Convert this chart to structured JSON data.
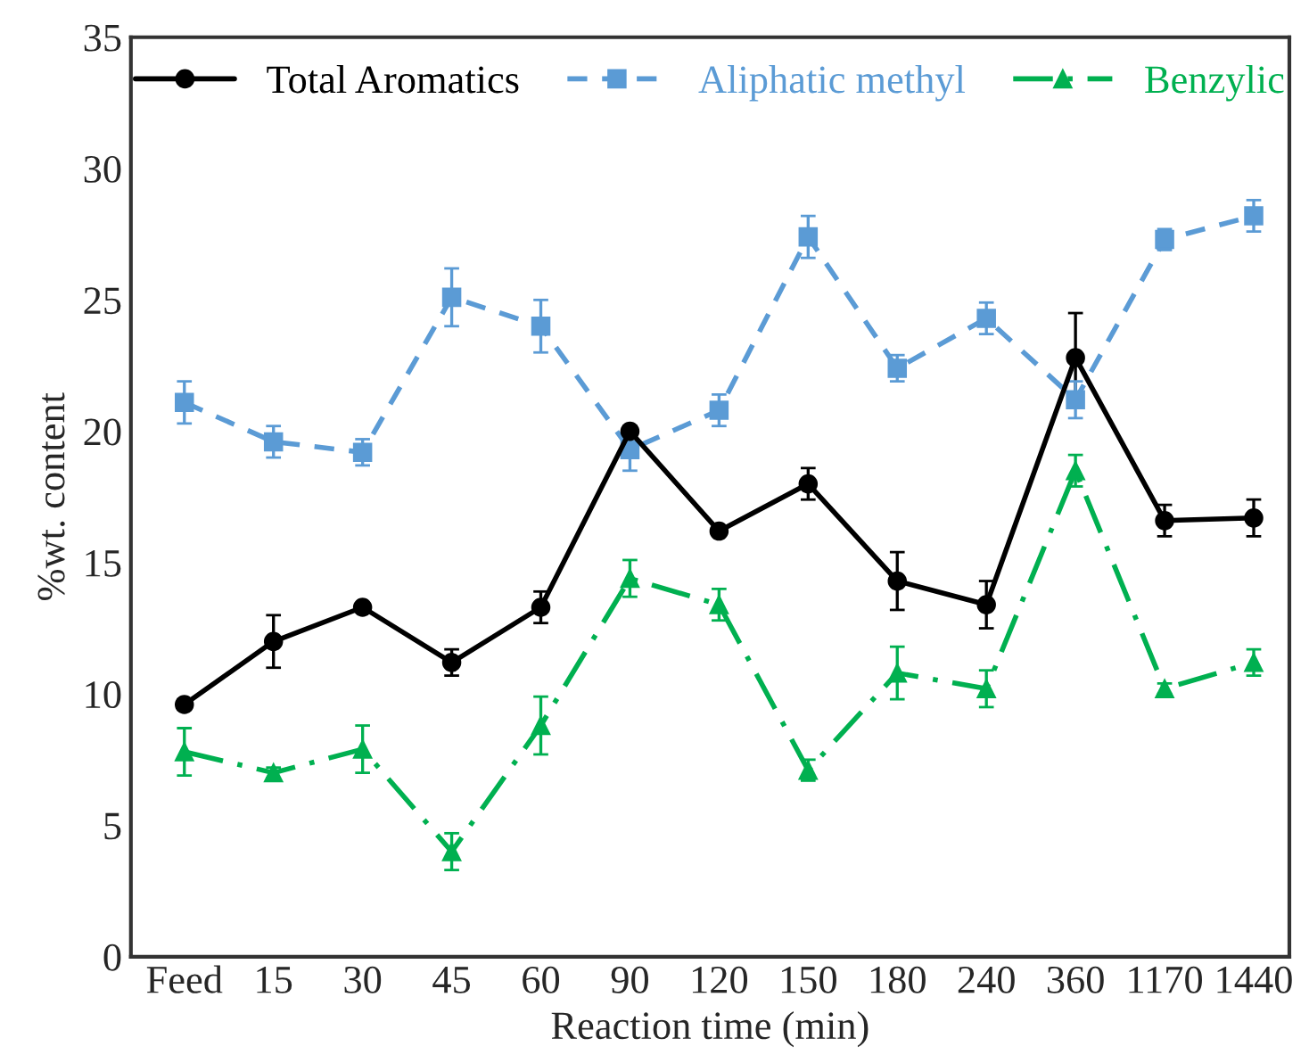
{
  "chart_data": {
    "type": "line",
    "xlabel": "Reaction time (min)",
    "ylabel": "%wt. content",
    "categories": [
      "Feed",
      "15",
      "30",
      "45",
      "60",
      "90",
      "120",
      "150",
      "180",
      "240",
      "360",
      "1170",
      "1440"
    ],
    "ylim": [
      0,
      35
    ],
    "yticks": [
      0,
      5,
      10,
      15,
      20,
      25,
      30,
      35
    ],
    "grid": false,
    "legend": "top",
    "series": [
      {
        "name": "Total Aromatics",
        "color": "#000000",
        "marker": "circle",
        "line_style": "solid",
        "values": [
          9.6,
          12.0,
          13.3,
          11.2,
          13.3,
          20.0,
          16.2,
          18.0,
          14.3,
          13.4,
          22.8,
          16.6,
          16.7
        ],
        "errors": [
          0.2,
          1.0,
          0.1,
          0.5,
          0.6,
          0.2,
          0.1,
          0.6,
          1.1,
          0.9,
          1.7,
          0.6,
          0.7
        ]
      },
      {
        "name": "Aliphatic methyl",
        "color": "#5b9bd5",
        "marker": "square",
        "line_style": "dashed",
        "values": [
          21.1,
          19.6,
          19.2,
          25.1,
          24.0,
          19.3,
          20.8,
          27.4,
          22.4,
          24.3,
          21.2,
          27.3,
          28.2
        ],
        "errors": [
          0.8,
          0.6,
          0.5,
          1.1,
          1.0,
          0.8,
          0.6,
          0.8,
          0.5,
          0.6,
          0.7,
          0.4,
          0.6
        ]
      },
      {
        "name": "Benzylic",
        "color": "#00b050",
        "marker": "triangle",
        "line_style": "dashdot",
        "values": [
          7.8,
          7.0,
          7.9,
          4.0,
          8.8,
          14.4,
          13.4,
          7.1,
          10.8,
          10.2,
          18.5,
          10.2,
          11.2
        ],
        "errors": [
          0.9,
          0.2,
          0.9,
          0.7,
          1.1,
          0.7,
          0.6,
          0.4,
          1.0,
          0.7,
          0.6,
          0.2,
          0.5
        ]
      }
    ]
  }
}
